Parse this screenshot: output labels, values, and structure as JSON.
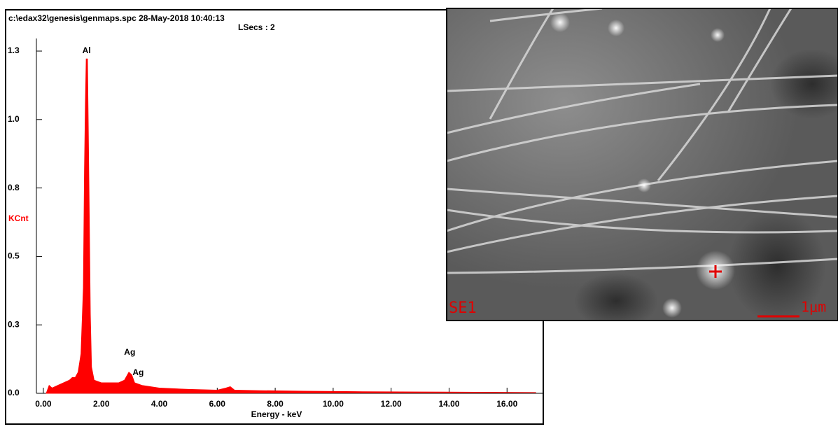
{
  "chart_data": {
    "type": "area",
    "title": "c:\\edax32\\genesis\\genmaps.spc  28-May-2018 10:40:13",
    "subtitle": "LSecs : 2",
    "y_label": "KCnt",
    "x_label": "Energy - keV",
    "color": "#ff0000",
    "xlim": [
      -0.24,
      17.25
    ],
    "ylim": [
      0,
      1.3
    ],
    "xticks": [
      {
        "value": 0,
        "label": "0.00"
      },
      {
        "value": 2,
        "label": "2.00"
      },
      {
        "value": 4,
        "label": "4.00"
      },
      {
        "value": 6,
        "label": "6.00"
      },
      {
        "value": 8,
        "label": "8.00"
      },
      {
        "value": 10,
        "label": "10.00"
      },
      {
        "value": 12,
        "label": "12.00"
      },
      {
        "value": 14,
        "label": "14.00"
      },
      {
        "value": 16,
        "label": "16.00"
      }
    ],
    "yticks": [
      {
        "value": 0,
        "label": "0.0"
      },
      {
        "value": 0.26,
        "label": "0.3"
      },
      {
        "value": 0.52,
        "label": "0.5"
      },
      {
        "value": 0.78,
        "label": "0.8"
      },
      {
        "value": 1.04,
        "label": "1.0"
      },
      1.3
    ],
    "x": [
      0.1,
      0.2,
      0.3,
      0.5,
      0.7,
      0.9,
      1.0,
      1.1,
      1.2,
      1.3,
      1.38,
      1.42,
      1.45,
      1.48,
      1.52,
      1.55,
      1.58,
      1.62,
      1.66,
      1.75,
      2.0,
      2.3,
      2.6,
      2.8,
      2.95,
      3.05,
      3.15,
      3.4,
      3.7,
      4.0,
      5.0,
      6.0,
      6.3,
      6.45,
      6.6,
      7.5,
      9,
      11,
      13,
      15,
      17
    ],
    "values": [
      0,
      0.03,
      0.02,
      0.03,
      0.04,
      0.05,
      0.06,
      0.06,
      0.08,
      0.15,
      0.4,
      0.85,
      1.1,
      1.27,
      1.27,
      1.0,
      0.72,
      0.3,
      0.1,
      0.05,
      0.04,
      0.04,
      0.04,
      0.05,
      0.08,
      0.07,
      0.04,
      0.03,
      0.025,
      0.02,
      0.015,
      0.012,
      0.02,
      0.025,
      0.012,
      0.01,
      0.008,
      0.006,
      0.005,
      0.004,
      0.003
    ],
    "peak_labels": [
      {
        "label": "Al",
        "energy": 1.49
      },
      {
        "label": "Ag",
        "energy": 2.98
      },
      {
        "label": "Ag",
        "energy": 3.15
      }
    ]
  },
  "image": {
    "label": "SE1",
    "scale_bar": "1μm"
  }
}
